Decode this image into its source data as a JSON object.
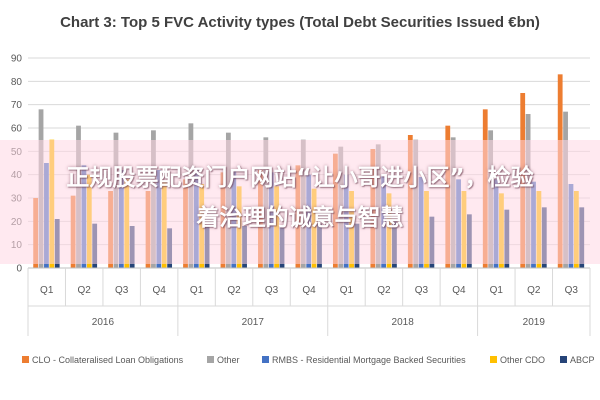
{
  "chart_data": {
    "type": "bar",
    "title": "Chart 3: Top 5 FVC Activity types (Total Debt Securities Issued €bn)",
    "xlabel": "",
    "ylabel": "",
    "ylim": [
      0,
      90
    ],
    "yticks": [
      0,
      10,
      20,
      30,
      40,
      50,
      60,
      70,
      80,
      90
    ],
    "grid": true,
    "legend_position": "bottom",
    "categories": [
      "Q1",
      "Q2",
      "Q3",
      "Q4",
      "Q1",
      "Q2",
      "Q3",
      "Q4",
      "Q1",
      "Q2",
      "Q3",
      "Q4",
      "Q1",
      "Q2",
      "Q3"
    ],
    "years": [
      {
        "label": "2016",
        "quarters": 4
      },
      {
        "label": "2017",
        "quarters": 4
      },
      {
        "label": "2018",
        "quarters": 4
      },
      {
        "label": "2019",
        "quarters": 3
      }
    ],
    "series": [
      {
        "name": "CLO - Collateralised Loan Obligations",
        "color": "#ED7D31",
        "values": [
          30,
          31,
          33,
          33,
          38,
          41,
          42,
          44,
          49,
          51,
          57,
          61,
          68,
          75,
          83
        ]
      },
      {
        "name": "Other",
        "color": "#A5A5A5",
        "values": [
          68,
          61,
          58,
          59,
          62,
          58,
          56,
          55,
          52,
          53,
          55,
          56,
          59,
          66,
          67
        ]
      },
      {
        "name": "RMBS - Residential Mortgage Backed Securities",
        "color": "#4472C4",
        "values": [
          45,
          44,
          42,
          42,
          43,
          42,
          41,
          40,
          40,
          40,
          39,
          38,
          38,
          37,
          36
        ]
      },
      {
        "name": "Other CDO",
        "color": "#FFC000",
        "values": [
          55,
          40,
          38,
          37,
          36,
          35,
          35,
          34,
          33,
          32,
          33,
          33,
          32,
          33,
          33
        ]
      },
      {
        "name": "ABCP",
        "color": "#264478",
        "values": [
          21,
          19,
          18,
          17,
          18,
          18,
          18,
          19,
          19,
          20,
          22,
          23,
          25,
          26,
          26
        ]
      }
    ]
  },
  "overlay": {
    "line1": "正规股票配资门户网站“让小哥进小区”，检验",
    "line2": "着治理的诚意与智慧"
  }
}
